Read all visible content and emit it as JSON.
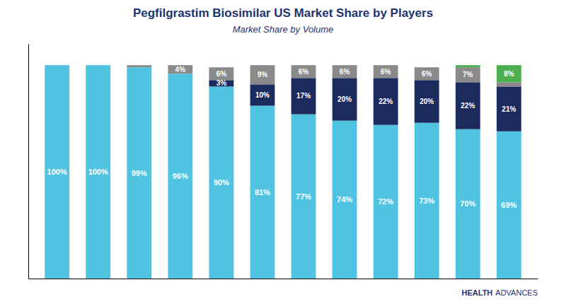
{
  "chart_data": {
    "type": "bar",
    "title": "Pegfilgrastim Biosimilar US Market Share by Players",
    "subtitle": "Market Share by Volume",
    "annotations": [
      "HEALTH",
      "ADVANCES"
    ],
    "categories": [
      null,
      null,
      null,
      null,
      null,
      null,
      null,
      null,
      null,
      null,
      null,
      null
    ],
    "stacked": true,
    "data_labels": true,
    "tick_labels": false,
    "ylim": [
      0,
      110
    ],
    "series": [
      {
        "color": "#4FC3E0",
        "values": [
          100,
          100,
          99,
          96,
          90,
          81,
          77,
          74,
          72,
          73,
          70,
          69
        ],
        "value_labels": [
          "100%",
          "100%",
          "99%",
          "96%",
          "90%",
          "81%",
          "77%",
          "74%",
          "72%",
          "73%",
          "70%",
          "69%"
        ]
      },
      {
        "color": "#1C2B5E",
        "values": [
          0,
          0,
          0,
          0,
          3,
          10,
          17,
          20,
          22,
          20,
          22,
          21
        ],
        "value_labels": [
          null,
          null,
          null,
          null,
          "3%",
          "10%",
          "17%",
          "20%",
          "22%",
          "20%",
          "22%",
          "21%"
        ]
      },
      {
        "color": "#8A8A8A",
        "values": [
          0,
          0,
          1,
          4,
          6,
          9,
          6,
          6,
          6,
          6,
          7,
          2
        ],
        "value_labels": [
          null,
          null,
          null,
          "4%",
          "6%",
          "9%",
          "6%",
          "6%",
          "6%",
          "6%",
          "7%",
          null
        ]
      },
      {
        "color": "#4CAF50",
        "values": [
          0,
          0,
          0,
          0,
          0,
          0,
          0,
          0,
          0,
          0,
          1,
          8
        ],
        "value_labels": [
          null,
          null,
          null,
          null,
          null,
          null,
          null,
          null,
          null,
          null,
          null,
          "8%"
        ]
      }
    ]
  }
}
